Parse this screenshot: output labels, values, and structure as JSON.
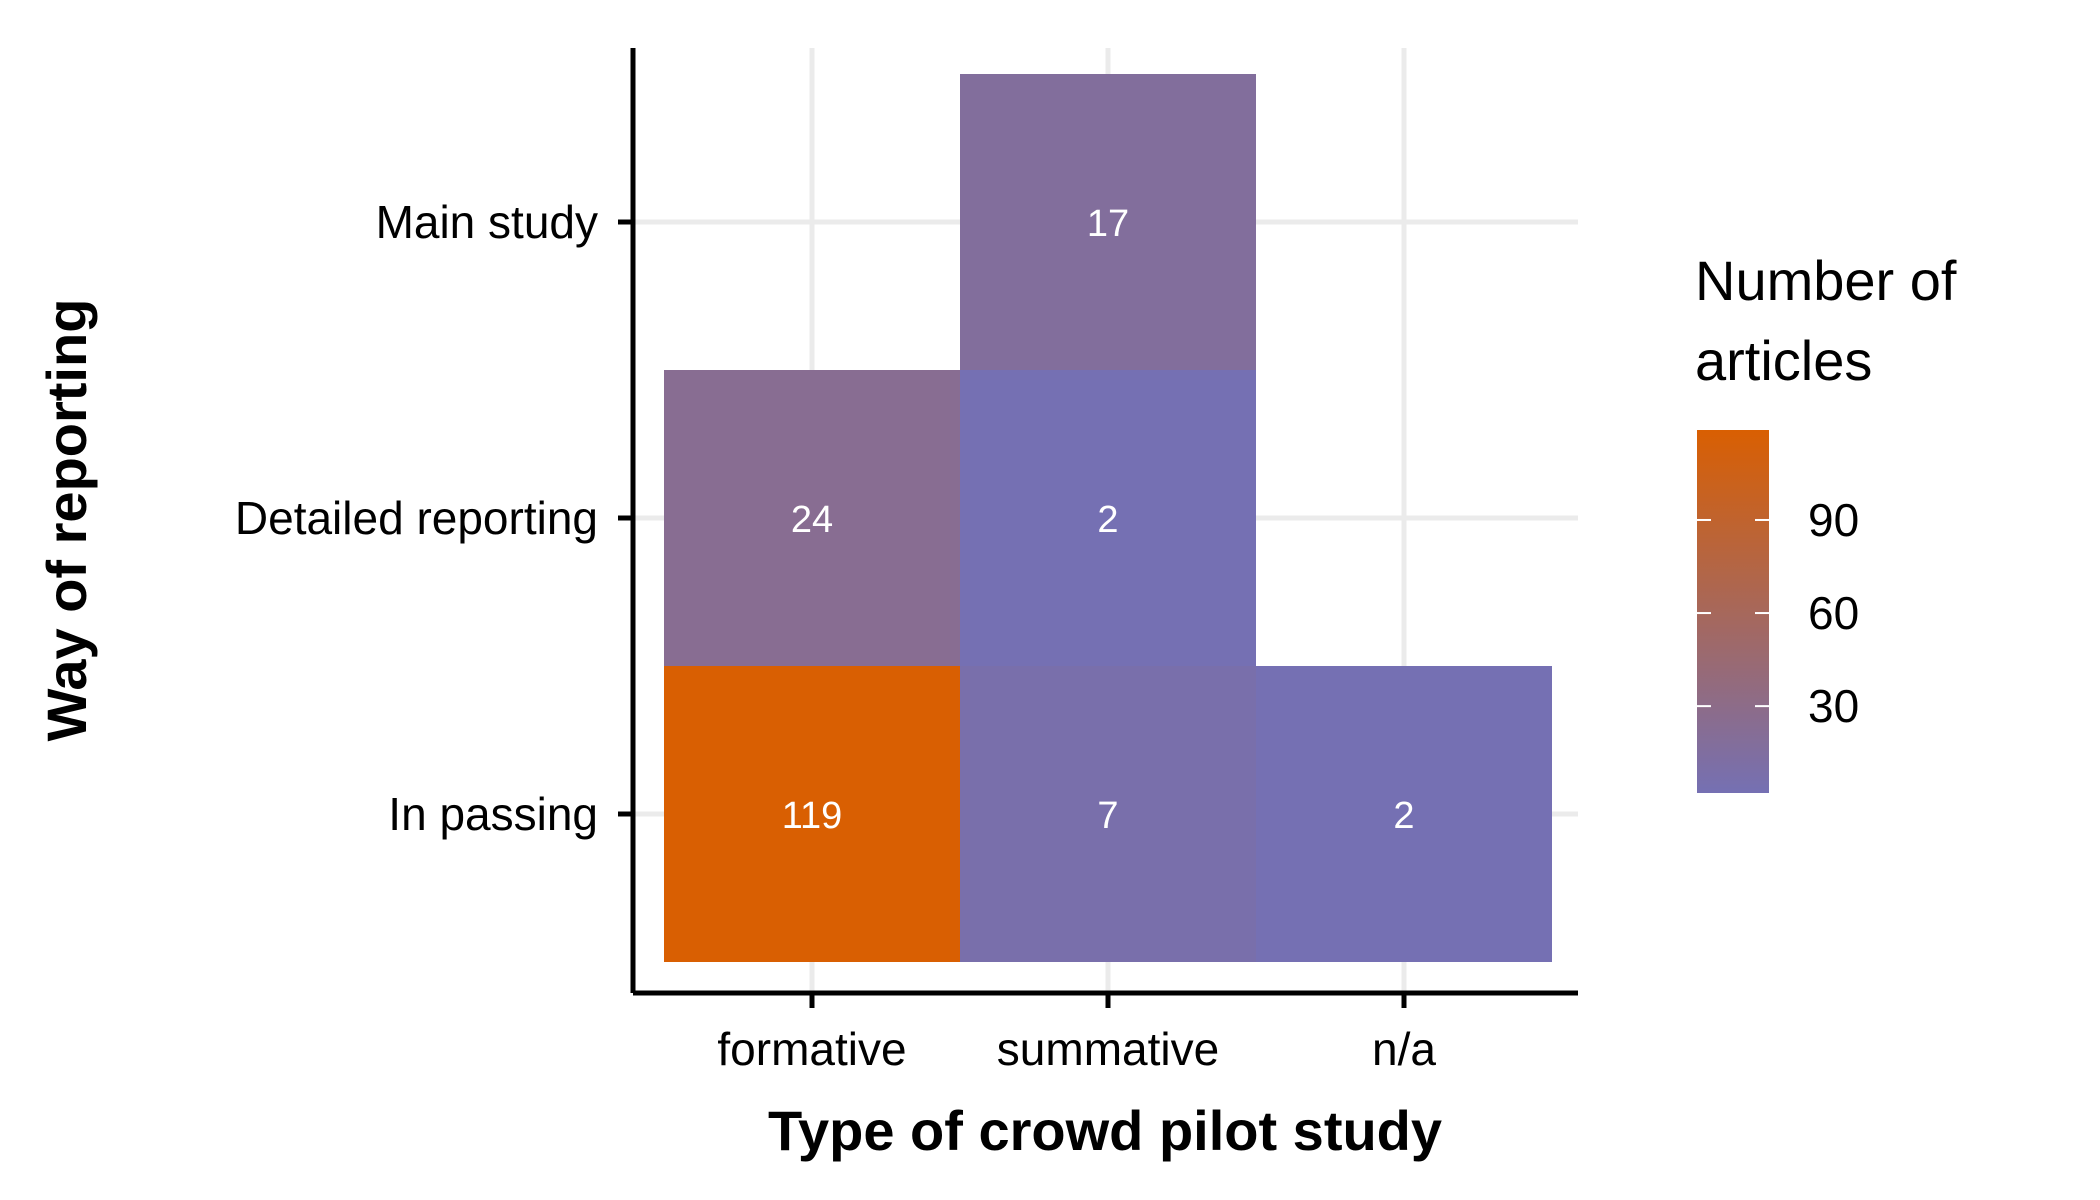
{
  "chart_data": {
    "type": "heatmap",
    "xlabel": "Type of crowd pilot study",
    "ylabel": "Way of reporting",
    "x_categories": [
      "formative",
      "summative",
      "n/a"
    ],
    "y_categories": [
      "Main study",
      "Detailed reporting",
      "In passing"
    ],
    "cells": [
      {
        "x": "summative",
        "y": "Main study",
        "value": 17,
        "label": "17"
      },
      {
        "x": "formative",
        "y": "Detailed reporting",
        "value": 24,
        "label": "24"
      },
      {
        "x": "summative",
        "y": "Detailed reporting",
        "value": 2,
        "label": "2"
      },
      {
        "x": "formative",
        "y": "In passing",
        "value": 119,
        "label": "119"
      },
      {
        "x": "summative",
        "y": "In passing",
        "value": 7,
        "label": "7"
      },
      {
        "x": "n/a",
        "y": "In passing",
        "value": 2,
        "label": "2"
      }
    ],
    "legend": {
      "title_lines": [
        "Number of",
        "articles"
      ],
      "min": 2,
      "max": 119,
      "ticks": [
        30,
        60,
        90
      ],
      "tick_labels": [
        "30",
        "60",
        "90"
      ],
      "low_color": "#7570b3",
      "high_color": "#d95f02"
    },
    "grid": true
  }
}
